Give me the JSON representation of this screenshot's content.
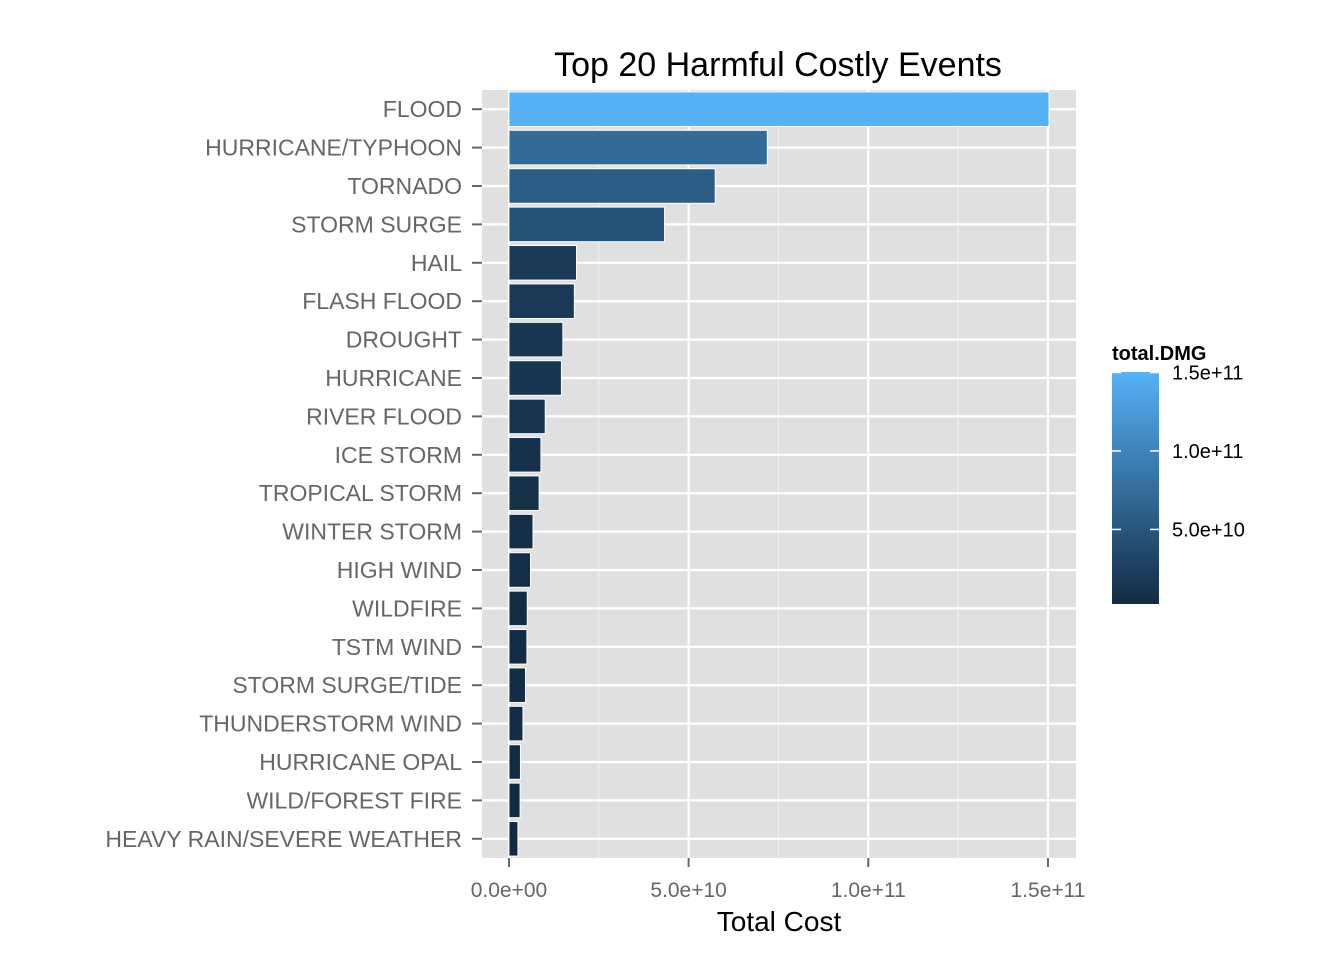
{
  "chart_data": {
    "type": "bar",
    "orientation": "horizontal",
    "title": "Top 20 Harmful Costly Events",
    "xlabel": "Total Cost",
    "ylabel": "",
    "categories": [
      "FLOOD",
      "HURRICANE/TYPHOON",
      "TORNADO",
      "STORM SURGE",
      "HAIL",
      "FLASH FLOOD",
      "DROUGHT",
      "HURRICANE",
      "RIVER FLOOD",
      "ICE STORM",
      "TROPICAL STORM",
      "WINTER STORM",
      "HIGH WIND",
      "WILDFIRE",
      "TSTM WIND",
      "STORM SURGE/TIDE",
      "THUNDERSTORM WIND",
      "HURRICANE OPAL",
      "WILD/FOREST FIRE",
      "HEAVY RAIN/SEVERE WEATHER"
    ],
    "values": [
      150300000000,
      71900000000,
      57400000000,
      43300000000,
      18800000000,
      18200000000,
      15000000000,
      14600000000,
      10100000000,
      8900000000,
      8400000000,
      6700000000,
      6000000000,
      5100000000,
      5000000000,
      4600000000,
      3900000000,
      3200000000,
      3100000000,
      2500000000
    ],
    "xlim": [
      -7500000000,
      157800000000
    ],
    "x_ticks": [
      0,
      50000000000,
      100000000000,
      150000000000
    ],
    "x_tick_labels": [
      "0.0e+00",
      "5.0e+10",
      "1.0e+11",
      "1.5e+11"
    ],
    "grid": true,
    "panel_background": "#e0e0e0",
    "grid_color": "#ffffff",
    "fill_scale": {
      "variable": "total.DMG",
      "low_color": "#132b43",
      "high_color": "#56b1f7",
      "range": [
        2500000000,
        150300000000
      ],
      "ticks": [
        50000000000,
        100000000000,
        150000000000
      ],
      "tick_labels": [
        "5.0e+10",
        "1.0e+11",
        "1.5e+11"
      ]
    },
    "legend_position": "right"
  }
}
